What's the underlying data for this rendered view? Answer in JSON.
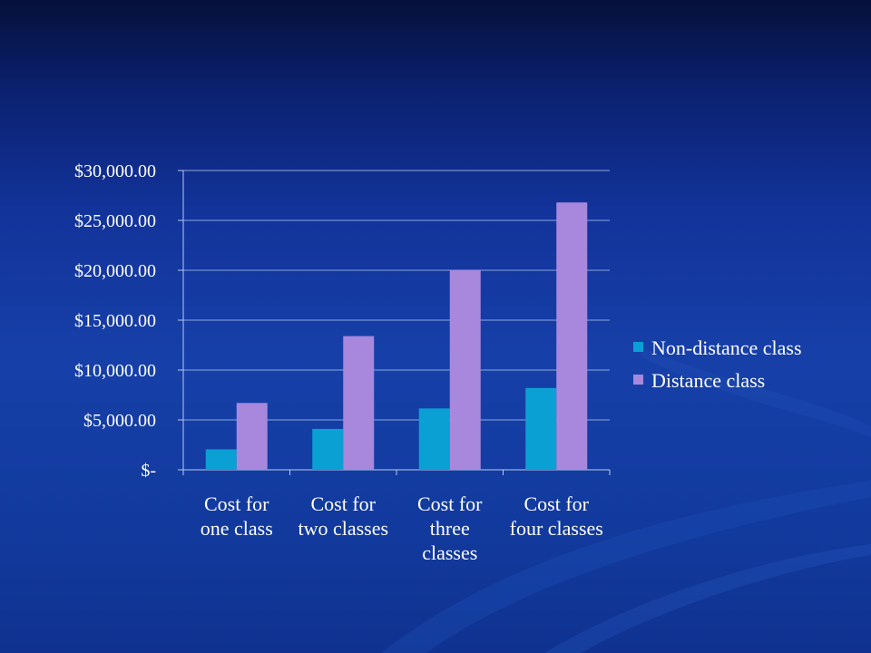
{
  "chart_data": {
    "type": "bar",
    "title": "",
    "xlabel": "",
    "ylabel": "",
    "categories": [
      [
        "Cost for",
        "one class"
      ],
      [
        "Cost for",
        "two classes"
      ],
      [
        "Cost for",
        "three",
        "classes"
      ],
      [
        "Cost for",
        "four classes"
      ]
    ],
    "series": [
      {
        "name": "Non-distance class",
        "color": "#0aa0d4",
        "values": [
          2050,
          4100,
          6150,
          8200
        ]
      },
      {
        "name": "Distance class",
        "color": "#a788dd",
        "values": [
          6700,
          13400,
          20000,
          26800
        ]
      }
    ],
    "ylim": [
      0,
      30000
    ],
    "yticks": [
      0,
      5000,
      10000,
      15000,
      20000,
      25000,
      30000
    ],
    "ytick_labels": [
      "$-",
      "$5,000.00",
      "$10,000.00",
      "$15,000.00",
      "$20,000.00",
      "$25,000.00",
      "$30,000.00"
    ],
    "grid": true,
    "legend_position": "right",
    "colors": {
      "gridline": "#8aa6e0",
      "axis": "#b8c8ee",
      "text": "#ffffff"
    }
  }
}
